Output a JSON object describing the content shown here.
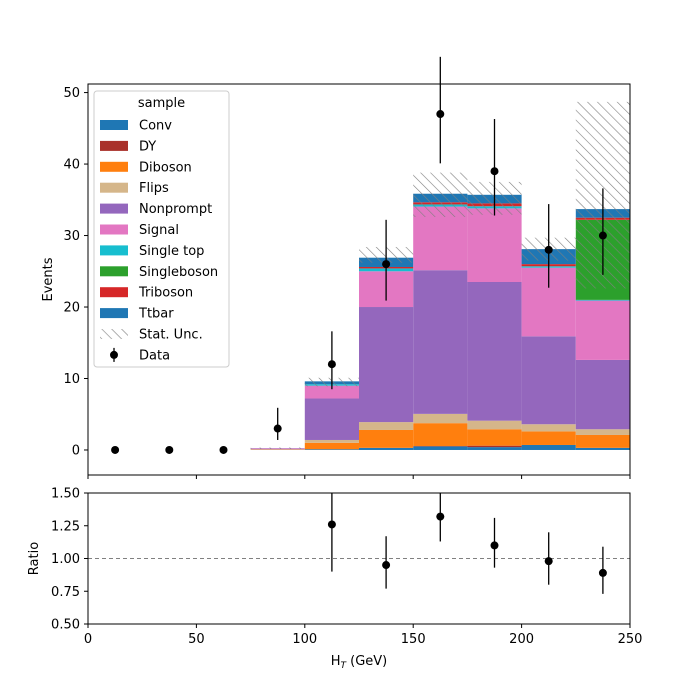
{
  "chart_data": [
    {
      "type": "bar",
      "stacked": true,
      "x_bins": [
        0,
        25,
        50,
        75,
        100,
        125,
        150,
        175,
        200,
        225,
        250
      ],
      "ylabel": "Events",
      "ylim": [
        -3.5,
        51.2
      ],
      "yticks": [
        0,
        10,
        20,
        30,
        40,
        50
      ],
      "legend": {
        "title": "sample",
        "placement": "top-left"
      },
      "series": [
        {
          "name": "Conv",
          "color": "#1f77b4",
          "values": [
            0,
            0,
            0,
            0,
            0.1,
            0.3,
            0.5,
            0.4,
            0.7,
            0.3
          ]
        },
        {
          "name": "DY",
          "color": "#a9302a",
          "values": [
            0,
            0,
            0,
            0,
            0,
            0,
            0.05,
            0.2,
            0,
            0
          ]
        },
        {
          "name": "Diboson",
          "color": "#ff7f0e",
          "values": [
            0,
            0,
            0,
            0.05,
            0.9,
            2.5,
            3.2,
            2.3,
            1.9,
            1.8
          ]
        },
        {
          "name": "Flips",
          "color": "#d5b68a",
          "values": [
            0,
            0,
            0,
            0.05,
            0.4,
            1.1,
            1.3,
            1.2,
            1.0,
            0.8
          ]
        },
        {
          "name": "Nonprompt",
          "color": "#9467bd",
          "values": [
            0,
            0,
            0,
            0.1,
            5.8,
            16.1,
            20.1,
            19.4,
            12.3,
            9.7
          ]
        },
        {
          "name": "Signal",
          "color": "#e377c2",
          "values": [
            0,
            0,
            0,
            0.05,
            1.8,
            5.0,
            8.9,
            10.3,
            9.6,
            8.3
          ]
        },
        {
          "name": "Single top",
          "color": "#17becf",
          "values": [
            0,
            0,
            0,
            0,
            0.2,
            0.4,
            0.3,
            0.3,
            0.2,
            0.1
          ]
        },
        {
          "name": "Singleboson",
          "color": "#2ca02c",
          "values": [
            0,
            0,
            0,
            0,
            0,
            0,
            0,
            0,
            0,
            11.2
          ]
        },
        {
          "name": "Triboson",
          "color": "#d62728",
          "values": [
            0,
            0,
            0,
            0,
            0,
            0.2,
            0.3,
            0.4,
            0.3,
            0.3
          ]
        },
        {
          "name": "Ttbar",
          "color": "#1f77b4",
          "values": [
            0,
            0,
            0,
            0,
            0.4,
            1.3,
            1.2,
            1.2,
            2.1,
            1.2
          ]
        }
      ],
      "stat_unc": {
        "name": "Stat. Unc.",
        "lower": [
          0,
          0,
          0,
          0.15,
          8.9,
          26.2,
          32.6,
          32.9,
          26.5,
          22.6
        ],
        "upper": [
          0,
          0,
          0,
          0.35,
          10.1,
          28.4,
          38.8,
          37.5,
          29.7,
          48.7
        ]
      },
      "data": {
        "name": "Data",
        "x": [
          12.5,
          37.5,
          62.5,
          87.5,
          112.5,
          137.5,
          162.5,
          187.5,
          212.5,
          237.5
        ],
        "y": [
          0,
          0,
          0,
          3,
          12,
          26,
          47,
          39,
          28,
          30
        ],
        "yerr_low": [
          0,
          0,
          0,
          1.6,
          3.5,
          5.1,
          6.9,
          6.2,
          5.3,
          5.5
        ],
        "yerr_high": [
          0,
          0,
          0,
          2.9,
          4.6,
          6.2,
          8.0,
          7.3,
          6.4,
          6.6
        ]
      }
    },
    {
      "type": "scatter",
      "xlabel": "H_T (GeV)",
      "xlim": [
        0,
        250
      ],
      "xticks": [
        0,
        50,
        100,
        150,
        200,
        250
      ],
      "ylabel": "Ratio",
      "ylim": [
        0.5,
        1.5
      ],
      "yticks": [
        "0.50",
        "0.75",
        "1.00",
        "1.25",
        "1.50"
      ],
      "reference_line": 1.0,
      "series": [
        {
          "name": "Ratio",
          "x": [
            112.5,
            137.5,
            162.5,
            187.5,
            212.5,
            237.5
          ],
          "y": [
            1.26,
            0.95,
            1.32,
            1.1,
            0.98,
            0.89
          ],
          "yerr_low": [
            0.36,
            0.18,
            0.19,
            0.17,
            0.18,
            0.16
          ],
          "yerr_high": [
            0.46,
            0.22,
            0.23,
            0.21,
            0.22,
            0.2
          ]
        }
      ]
    }
  ]
}
